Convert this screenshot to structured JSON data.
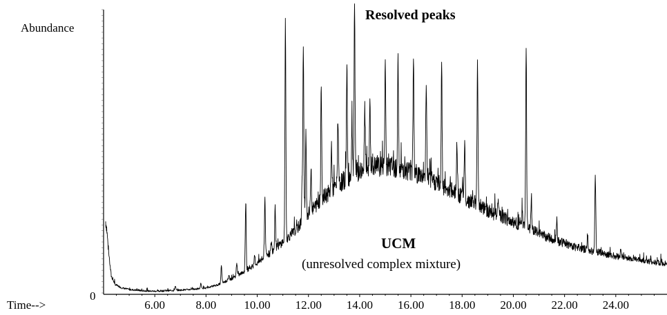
{
  "chart_data": {
    "type": "line",
    "ylabel": "Abundance",
    "xlabel": "Time-->",
    "y_zero_label": "0",
    "xlim": [
      4.0,
      26.0
    ],
    "ylim": [
      0,
      100
    ],
    "x_tick_labels": [
      "6.00",
      "8.00",
      "10.00",
      "12.00",
      "14.00",
      "16.00",
      "18.00",
      "20.00",
      "22.00",
      "24.00"
    ],
    "x_ticks": [
      6,
      8,
      10,
      12,
      14,
      16,
      18,
      20,
      22,
      24
    ],
    "annotations": {
      "resolved": "Resolved peaks",
      "ucm": "UCM",
      "ucm_sub": "(unresolved complex mixture)"
    },
    "baseline": [
      [
        4.0,
        24
      ],
      [
        4.05,
        27
      ],
      [
        4.12,
        23
      ],
      [
        4.2,
        14
      ],
      [
        4.3,
        6
      ],
      [
        4.45,
        3
      ],
      [
        4.7,
        1.8
      ],
      [
        5.0,
        1.2
      ],
      [
        5.5,
        0.8
      ],
      [
        6.0,
        0.6
      ],
      [
        6.5,
        0.8
      ],
      [
        7.0,
        1.0
      ],
      [
        7.5,
        1.3
      ],
      [
        8.0,
        1.7
      ],
      [
        8.5,
        3
      ],
      [
        9.0,
        5
      ],
      [
        9.5,
        7.5
      ],
      [
        10.0,
        10.5
      ],
      [
        10.5,
        14
      ],
      [
        11.0,
        18
      ],
      [
        11.5,
        22
      ],
      [
        12.0,
        28
      ],
      [
        12.5,
        33
      ],
      [
        13.0,
        37
      ],
      [
        13.5,
        40.5
      ],
      [
        14.0,
        43
      ],
      [
        14.5,
        44.5
      ],
      [
        15.0,
        44.8
      ],
      [
        15.5,
        44.3
      ],
      [
        16.0,
        43
      ],
      [
        16.5,
        41
      ],
      [
        17.0,
        39
      ],
      [
        17.5,
        36.5
      ],
      [
        18.0,
        34
      ],
      [
        18.5,
        31.5
      ],
      [
        19.0,
        29
      ],
      [
        19.5,
        27
      ],
      [
        20.0,
        25
      ],
      [
        20.5,
        23
      ],
      [
        21.0,
        21
      ],
      [
        21.5,
        19
      ],
      [
        22.0,
        17.5
      ],
      [
        22.5,
        16
      ],
      [
        23.0,
        15
      ],
      [
        23.5,
        14
      ],
      [
        24.0,
        13
      ],
      [
        24.5,
        12.2
      ],
      [
        25.0,
        11.5
      ],
      [
        25.5,
        10.8
      ],
      [
        26.0,
        10.3
      ]
    ],
    "peaks": [
      [
        6.8,
        2.5
      ],
      [
        7.8,
        3.5
      ],
      [
        8.6,
        9.5
      ],
      [
        8.9,
        6
      ],
      [
        9.2,
        11
      ],
      [
        9.55,
        32
      ],
      [
        9.9,
        13
      ],
      [
        10.3,
        34
      ],
      [
        10.55,
        18
      ],
      [
        10.7,
        30
      ],
      [
        11.1,
        96
      ],
      [
        11.75,
        38
      ],
      [
        11.8,
        88
      ],
      [
        11.9,
        58
      ],
      [
        12.1,
        45
      ],
      [
        12.5,
        74
      ],
      [
        12.9,
        52
      ],
      [
        13.15,
        62
      ],
      [
        13.5,
        81
      ],
      [
        13.7,
        60
      ],
      [
        13.8,
        100
      ],
      [
        14.2,
        65
      ],
      [
        14.4,
        67
      ],
      [
        15.0,
        82
      ],
      [
        15.5,
        78
      ],
      [
        16.1,
        85
      ],
      [
        16.6,
        75
      ],
      [
        17.2,
        81
      ],
      [
        17.8,
        53
      ],
      [
        18.1,
        53
      ],
      [
        18.6,
        84
      ],
      [
        19.2,
        25
      ],
      [
        19.4,
        33
      ],
      [
        20.35,
        29
      ],
      [
        20.5,
        88
      ],
      [
        20.7,
        32
      ],
      [
        21.7,
        27
      ],
      [
        22.9,
        20
      ],
      [
        23.2,
        42
      ],
      [
        24.2,
        16
      ]
    ]
  }
}
